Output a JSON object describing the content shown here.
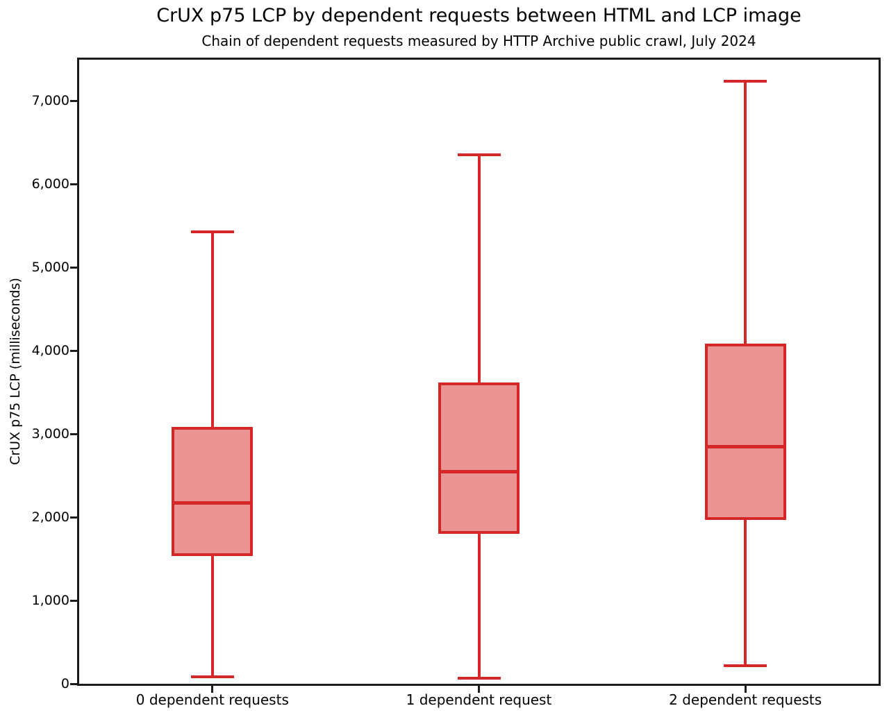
{
  "title": "CrUX p75 LCP by dependent requests between HTML and LCP image",
  "subtitle": "Chain of dependent requests measured by HTTP Archive public crawl, July 2024",
  "chart_data": {
    "type": "boxplot",
    "title": "CrUX p75 LCP by dependent requests between HTML and LCP image",
    "subtitle": "Chain of dependent requests measured by HTTP Archive public crawl, July 2024",
    "xlabel": "",
    "ylabel": "CrUX p75 LCP (milliseconds)",
    "ylim": [
      0,
      7500
    ],
    "yticks": [
      0,
      1000,
      2000,
      3000,
      4000,
      5000,
      6000,
      7000
    ],
    "ytick_labels": [
      "0",
      "1,000",
      "2,000",
      "3,000",
      "4,000",
      "5,000",
      "6,000",
      "7,000"
    ],
    "grid": false,
    "legend": "none",
    "categories": [
      "0 dependent requests",
      "1 dependent request",
      "2 dependent requests"
    ],
    "series": [
      {
        "category": "0 dependent requests",
        "whisker_low": 85,
        "q1": 1535,
        "median": 2170,
        "q3": 3090,
        "whisker_high": 5430
      },
      {
        "category": "1 dependent request",
        "whisker_low": 65,
        "q1": 1800,
        "median": 2545,
        "q3": 3620,
        "whisker_high": 6360
      },
      {
        "category": "2 dependent requests",
        "whisker_low": 215,
        "q1": 1970,
        "median": 2845,
        "q3": 4090,
        "whisker_high": 7245
      }
    ],
    "colors": {
      "box_line": "#d62728",
      "box_fill": "#ea9393",
      "axis": "#1c1c1c",
      "text": "#000000"
    }
  }
}
